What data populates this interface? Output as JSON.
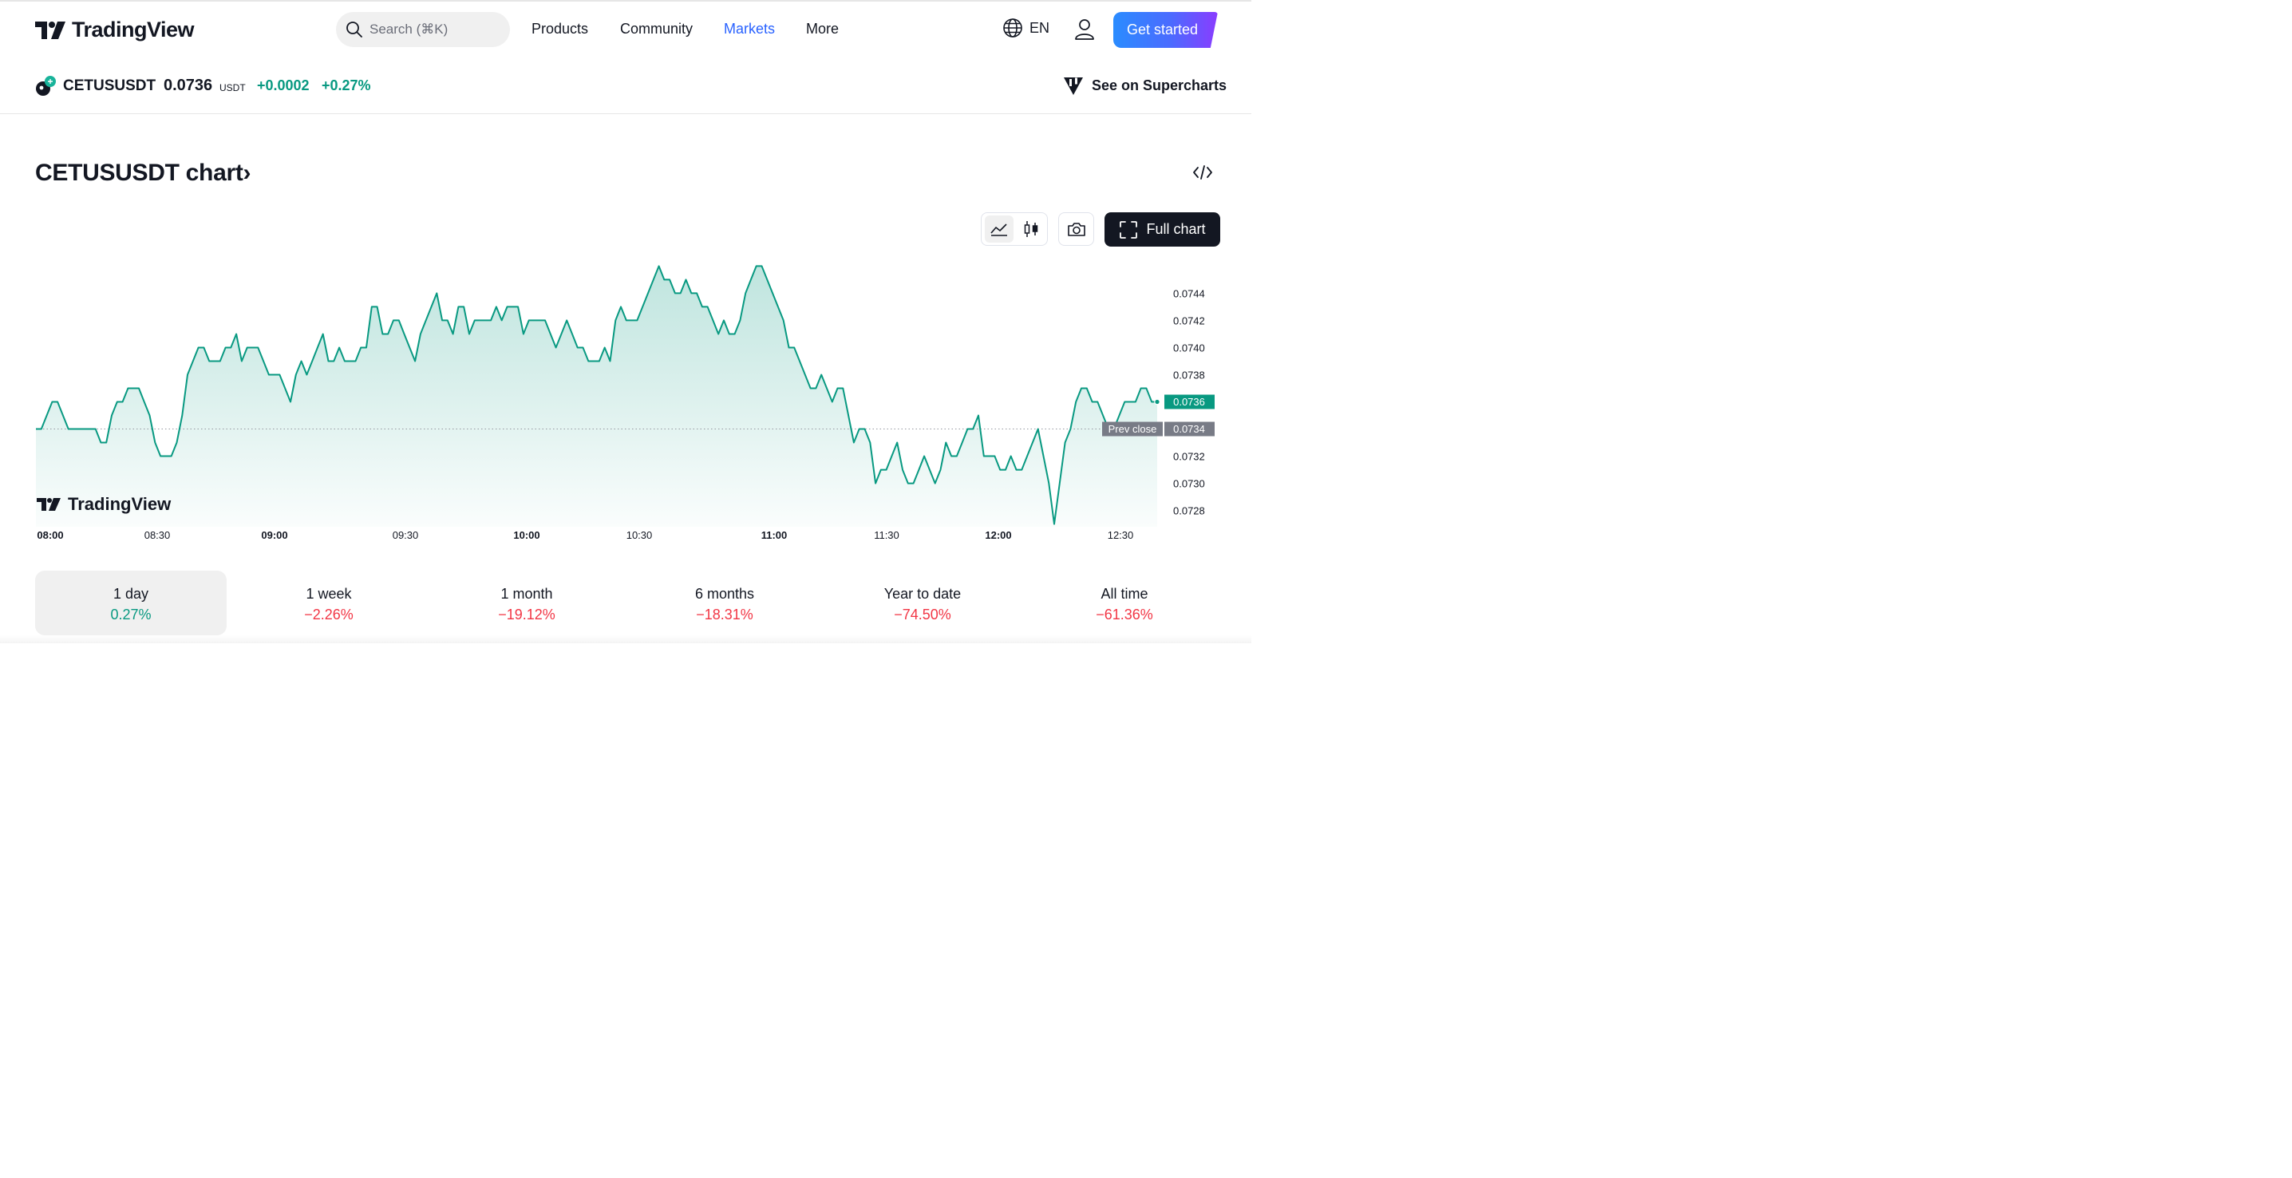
{
  "header": {
    "logo_text": "TradingView",
    "search_placeholder": "Search (⌘K)",
    "nav": [
      {
        "label": "Products",
        "active": false
      },
      {
        "label": "Community",
        "active": false
      },
      {
        "label": "Markets",
        "active": true
      },
      {
        "label": "More",
        "active": false
      }
    ],
    "language": "EN",
    "cta_label": "Get started"
  },
  "symbol": {
    "name": "CETUSUSDT",
    "price": "0.0736",
    "unit": "USDT",
    "change": "+0.0002",
    "change_pct": "+0.27%",
    "supercharts_label": "See on Supercharts"
  },
  "chart_section": {
    "title": "CETUSUSDT chart",
    "title_chevron": "›",
    "full_chart_label": "Full chart"
  },
  "chart_data": {
    "type": "area",
    "watermark": "TradingView",
    "x_ticks": [
      {
        "label": "08:00",
        "bold": true
      },
      {
        "label": "08:30",
        "bold": false
      },
      {
        "label": "09:00",
        "bold": true
      },
      {
        "label": "09:30",
        "bold": false
      },
      {
        "label": "10:00",
        "bold": true
      },
      {
        "label": "10:30",
        "bold": false
      },
      {
        "label": "11:00",
        "bold": true
      },
      {
        "label": "11:30",
        "bold": false
      },
      {
        "label": "12:00",
        "bold": true
      },
      {
        "label": "12:30",
        "bold": false
      }
    ],
    "y_ticks": [
      "0.0744",
      "0.0742",
      "0.0740",
      "0.0738",
      "0.0732",
      "0.0730",
      "0.0728"
    ],
    "ylim": [
      0.07268,
      0.07462
    ],
    "prev_close": 0.0734,
    "prev_close_label": "Prev close",
    "prev_close_value": "0.0734",
    "last_value": "0.0736",
    "line_color": "#089981",
    "series_values": [
      0.0734,
      0.0734,
      0.0735,
      0.0736,
      0.0736,
      0.0735,
      0.0734,
      0.0734,
      0.0734,
      0.0734,
      0.0734,
      0.0734,
      0.0733,
      0.0733,
      0.0735,
      0.0736,
      0.0736,
      0.0737,
      0.0737,
      0.0737,
      0.0736,
      0.0735,
      0.0733,
      0.0732,
      0.0732,
      0.0732,
      0.0733,
      0.0735,
      0.0738,
      0.0739,
      0.074,
      0.074,
      0.0739,
      0.0739,
      0.0739,
      0.074,
      0.074,
      0.0741,
      0.0739,
      0.074,
      0.074,
      0.074,
      0.0739,
      0.0738,
      0.0738,
      0.0738,
      0.0737,
      0.0736,
      0.0738,
      0.0739,
      0.0738,
      0.0739,
      0.074,
      0.0741,
      0.0739,
      0.0739,
      0.074,
      0.0739,
      0.0739,
      0.0739,
      0.074,
      0.074,
      0.0743,
      0.0743,
      0.0741,
      0.0741,
      0.0742,
      0.0742,
      0.0741,
      0.074,
      0.0739,
      0.0741,
      0.0742,
      0.0743,
      0.0744,
      0.0742,
      0.0742,
      0.0741,
      0.0743,
      0.0743,
      0.0741,
      0.0742,
      0.0742,
      0.0742,
      0.0742,
      0.0743,
      0.0742,
      0.0743,
      0.0743,
      0.0743,
      0.0741,
      0.0742,
      0.0742,
      0.0742,
      0.0742,
      0.0741,
      0.074,
      0.0741,
      0.0742,
      0.0741,
      0.074,
      0.074,
      0.0739,
      0.0739,
      0.0739,
      0.074,
      0.0739,
      0.0742,
      0.0743,
      0.0742,
      0.0742,
      0.0742,
      0.0743,
      0.0744,
      0.0745,
      0.0746,
      0.0745,
      0.0745,
      0.0744,
      0.0744,
      0.0745,
      0.0744,
      0.0744,
      0.0743,
      0.0743,
      0.0742,
      0.0741,
      0.0742,
      0.0741,
      0.0741,
      0.0742,
      0.0744,
      0.0745,
      0.0746,
      0.0746,
      0.0745,
      0.0744,
      0.0743,
      0.0742,
      0.074,
      0.074,
      0.0739,
      0.0738,
      0.0737,
      0.0737,
      0.0738,
      0.0737,
      0.0736,
      0.0737,
      0.0737,
      0.0735,
      0.0733,
      0.0734,
      0.0734,
      0.0733,
      0.073,
      0.0731,
      0.0731,
      0.0732,
      0.0733,
      0.0731,
      0.073,
      0.073,
      0.0731,
      0.0732,
      0.0731,
      0.073,
      0.0731,
      0.0733,
      0.0732,
      0.0732,
      0.0733,
      0.0734,
      0.0734,
      0.0735,
      0.0732,
      0.0732,
      0.0732,
      0.0731,
      0.0731,
      0.0732,
      0.0731,
      0.0731,
      0.0732,
      0.0733,
      0.0734,
      0.0732,
      0.073,
      0.0727,
      0.073,
      0.0733,
      0.0734,
      0.0736,
      0.0737,
      0.0737,
      0.0736,
      0.0736,
      0.0735,
      0.0734,
      0.0734,
      0.0735,
      0.0736,
      0.0736,
      0.0736,
      0.0737,
      0.0737,
      0.0736,
      0.0736
    ]
  },
  "periods": [
    {
      "label": "1 day",
      "value": "0.27%",
      "sign": "pos",
      "selected": true
    },
    {
      "label": "1 week",
      "value": "−2.26%",
      "sign": "neg",
      "selected": false
    },
    {
      "label": "1 month",
      "value": "−19.12%",
      "sign": "neg",
      "selected": false
    },
    {
      "label": "6 months",
      "value": "−18.31%",
      "sign": "neg",
      "selected": false
    },
    {
      "label": "Year to date",
      "value": "−74.50%",
      "sign": "neg",
      "selected": false
    },
    {
      "label": "All time",
      "value": "−61.36%",
      "sign": "neg",
      "selected": false
    }
  ]
}
